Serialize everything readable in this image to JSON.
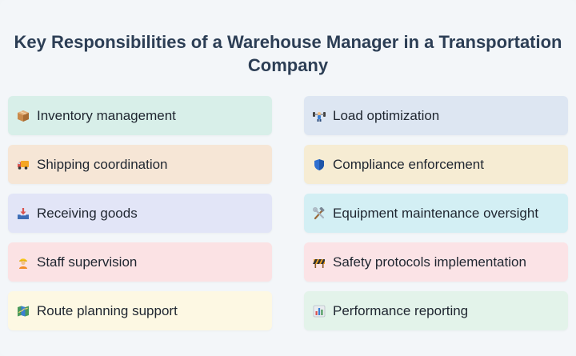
{
  "title": "Key Responsibilities of a Warehouse Manager in a Transportation Company",
  "items": [
    {
      "label": "Inventory management",
      "icon": "package-icon",
      "color": "#d8efe9"
    },
    {
      "label": "Load optimization",
      "icon": "weightlifter-icon",
      "color": "#dde6f2"
    },
    {
      "label": "Shipping coordination",
      "icon": "truck-icon",
      "color": "#f6e6d6"
    },
    {
      "label": "Compliance enforcement",
      "icon": "shield-icon",
      "color": "#f6ecd3"
    },
    {
      "label": "Receiving goods",
      "icon": "inbox-tray-icon",
      "color": "#e2e5f7"
    },
    {
      "label": "Equipment maintenance oversight",
      "icon": "hammer-wrench-icon",
      "color": "#d3eff4"
    },
    {
      "label": "Staff supervision",
      "icon": "construction-worker-icon",
      "color": "#fbe2e4"
    },
    {
      "label": "Safety protocols implementation",
      "icon": "construction-barrier-icon",
      "color": "#fbe3e6"
    },
    {
      "label": "Route planning support",
      "icon": "map-icon",
      "color": "#fdf8e3"
    },
    {
      "label": "Performance reporting",
      "icon": "bar-chart-icon",
      "color": "#e3f3ea"
    }
  ]
}
